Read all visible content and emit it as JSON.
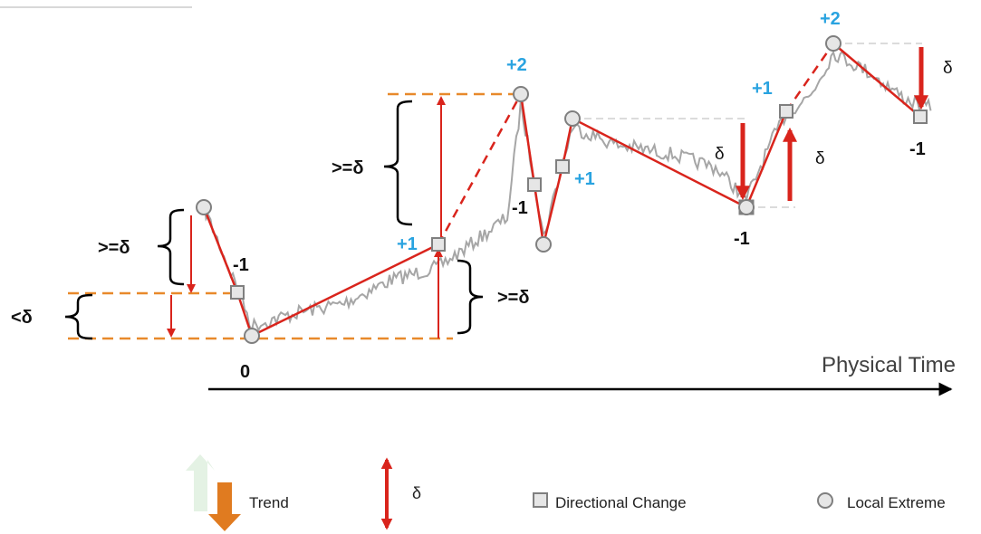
{
  "diagram": {
    "x_axis_label": "Physical Time",
    "level_labels": {
      "zero": "0",
      "minus_one_a": "-1",
      "minus_one_b": "-1",
      "minus_one_c": "-1",
      "minus_one_d": "-1",
      "plus_one_a": "+1",
      "plus_one_b": "+1",
      "plus_one_c": "+1",
      "plus_two_a": "+2",
      "plus_two_b": "+2"
    },
    "threshold_labels": {
      "less_than_delta": "<δ",
      "ge_delta_left": ">=δ",
      "ge_delta_upper": ">=δ",
      "ge_delta_right": ">=δ",
      "delta_a": "δ",
      "delta_b": "δ",
      "delta_c": "δ"
    },
    "colors": {
      "trend_line": "#d9241c",
      "price_series": "#a6a6a6",
      "threshold_dash": "#e8892b",
      "arrow": "#d9241c",
      "level_positive": "#29a3e0",
      "level_negative": "#111111",
      "marker_fill": "#e6e6e6",
      "marker_stroke": "#7f7f7f"
    }
  },
  "legend": {
    "trend_label": "Trend",
    "delta_label": "δ",
    "directional_change_label": "Directional Change",
    "local_extreme_label": "Local Extreme",
    "trend_up_color": "#e4f2e4",
    "trend_down_color": "#e07b20"
  }
}
